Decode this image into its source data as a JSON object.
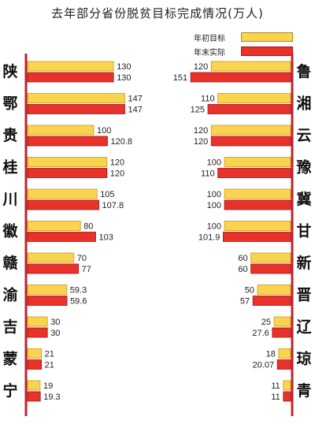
{
  "title": "去年部分省份脱贫目标完成情况(万人)",
  "legend": {
    "target": "年初目标",
    "actual": "年末实际"
  },
  "colors": {
    "target": "#f8d450",
    "actual": "#e8322a",
    "axis": "#c0242a"
  },
  "chart_data": {
    "type": "bar",
    "unit": "万人",
    "series_names": [
      "年初目标",
      "年末实际"
    ],
    "left": [
      {
        "province": "陕",
        "target": 130,
        "actual": 130
      },
      {
        "province": "鄂",
        "target": 147,
        "actual": 147
      },
      {
        "province": "贵",
        "target": 100,
        "actual": 120.8
      },
      {
        "province": "桂",
        "target": 120,
        "actual": 120
      },
      {
        "province": "川",
        "target": 105,
        "actual": 107.8
      },
      {
        "province": "徽",
        "target": 80,
        "actual": 103
      },
      {
        "province": "赣",
        "target": 70,
        "actual": 77
      },
      {
        "province": "渝",
        "target": 59.3,
        "actual": 59.6
      },
      {
        "province": "吉",
        "target": 30,
        "actual": 30
      },
      {
        "province": "蒙",
        "target": 21,
        "actual": 21
      },
      {
        "province": "宁",
        "target": 19,
        "actual": 19.3
      }
    ],
    "right": [
      {
        "province": "鲁",
        "target": 120,
        "actual": 151
      },
      {
        "province": "湘",
        "target": 110,
        "actual": 125
      },
      {
        "province": "云",
        "target": 120,
        "actual": 120
      },
      {
        "province": "豫",
        "target": 100,
        "actual": 110
      },
      {
        "province": "冀",
        "target": 100,
        "actual": 100
      },
      {
        "province": "甘",
        "target": 100,
        "actual": 101.9
      },
      {
        "province": "新",
        "target": 60,
        "actual": 60
      },
      {
        "province": "晋",
        "target": 50,
        "actual": 57
      },
      {
        "province": "辽",
        "target": 25,
        "actual": 27.6
      },
      {
        "province": "琼",
        "target": 18,
        "actual": 20.07
      },
      {
        "province": "青",
        "target": 11,
        "actual": 11
      }
    ]
  }
}
